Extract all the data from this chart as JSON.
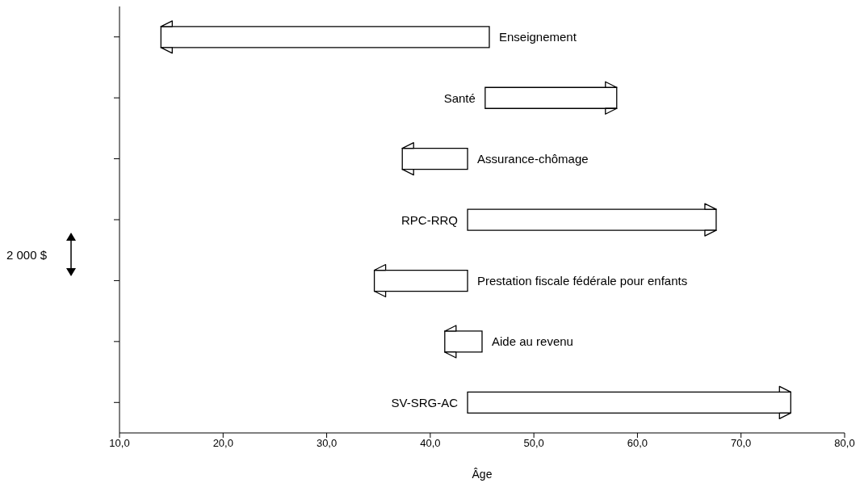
{
  "chart_data": {
    "type": "bar",
    "orientation": "horizontal",
    "xlabel": "Âge",
    "categories": [
      "Enseignement",
      "Santé",
      "Assurance-chômage",
      "RPC-RRQ",
      "Prestation fiscale fédérale pour enfants",
      "Aide au revenu",
      "SV-SRG-AC"
    ],
    "base": [
      45.7,
      45.3,
      43.6,
      43.6,
      43.6,
      45.0,
      43.6
    ],
    "values": [
      -31.7,
      12.7,
      -6.3,
      24.0,
      -9.0,
      -3.6,
      31.2
    ],
    "color": "#ffffff",
    "xlim": [
      10,
      80
    ],
    "xticks": [
      {
        "value": 10,
        "label": "10,0"
      },
      {
        "value": 20,
        "label": "20,0"
      },
      {
        "value": 30,
        "label": "30,0"
      },
      {
        "value": 40,
        "label": "40,0"
      },
      {
        "value": 50,
        "label": "50,0"
      },
      {
        "value": 60,
        "label": "60,0"
      },
      {
        "value": 70,
        "label": "70,0"
      },
      {
        "value": 80,
        "label": "80,0"
      }
    ],
    "tick_labels": "x",
    "annotations": [
      "2 000 $"
    ]
  }
}
